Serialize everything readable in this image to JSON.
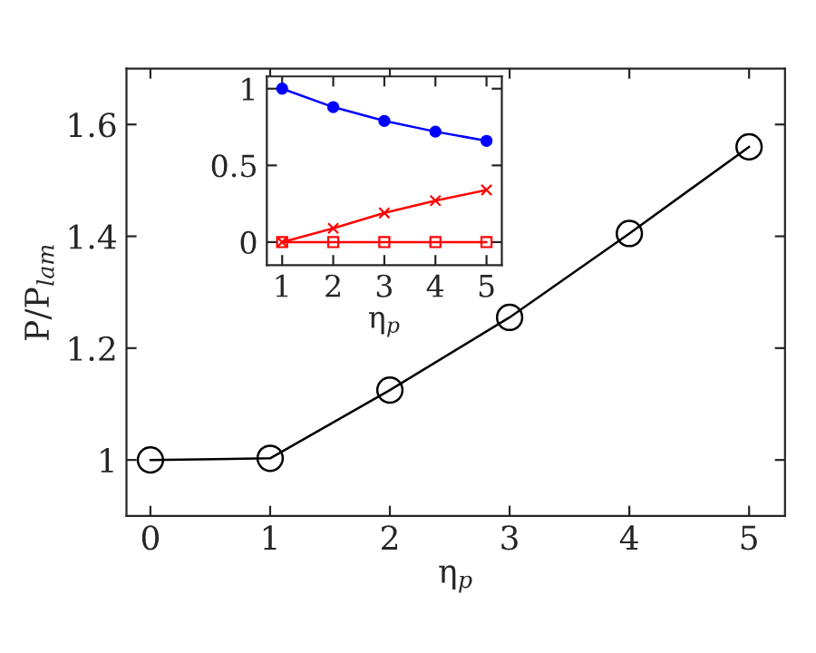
{
  "chart_data": [
    {
      "type": "line",
      "x": [
        0,
        1,
        2,
        3,
        4,
        5
      ],
      "xlabel": "η$_{p}$",
      "ylabel": "P/P$_{lam}$",
      "xlim": [
        -0.2,
        5.3
      ],
      "ylim": [
        0.9,
        1.7
      ],
      "xticks": [
        0,
        1,
        2,
        3,
        4,
        5
      ],
      "yticks": [
        1,
        1.2,
        1.4,
        1.6
      ],
      "marker": "circle",
      "grid": false,
      "legend": false,
      "series": [
        {
          "color": "#000000",
          "values": [
            1.0,
            1.003,
            1.125,
            1.255,
            1.405,
            1.56
          ]
        }
      ]
    },
    {
      "type": "line",
      "x": [
        1,
        2,
        3,
        4,
        5
      ],
      "xlabel": "η$_{p}$",
      "xlim": [
        0.7,
        5.3
      ],
      "ylim": [
        -0.15,
        1.08
      ],
      "xticks": [
        1,
        2,
        3,
        4,
        5
      ],
      "yticks": [
        0,
        0.5,
        1
      ],
      "grid": false,
      "legend": false,
      "series": [
        {
          "color": "#0000ff",
          "marker": "circle",
          "values": [
            1.0,
            0.88,
            0.79,
            0.72,
            0.66
          ]
        },
        {
          "color": "#ff0000",
          "marker": "square",
          "values": [
            0,
            0,
            0,
            0,
            0
          ]
        },
        {
          "color": "#ff0000",
          "marker": "cross",
          "values": [
            0,
            0.09,
            0.19,
            0.27,
            0.34
          ]
        }
      ]
    }
  ]
}
